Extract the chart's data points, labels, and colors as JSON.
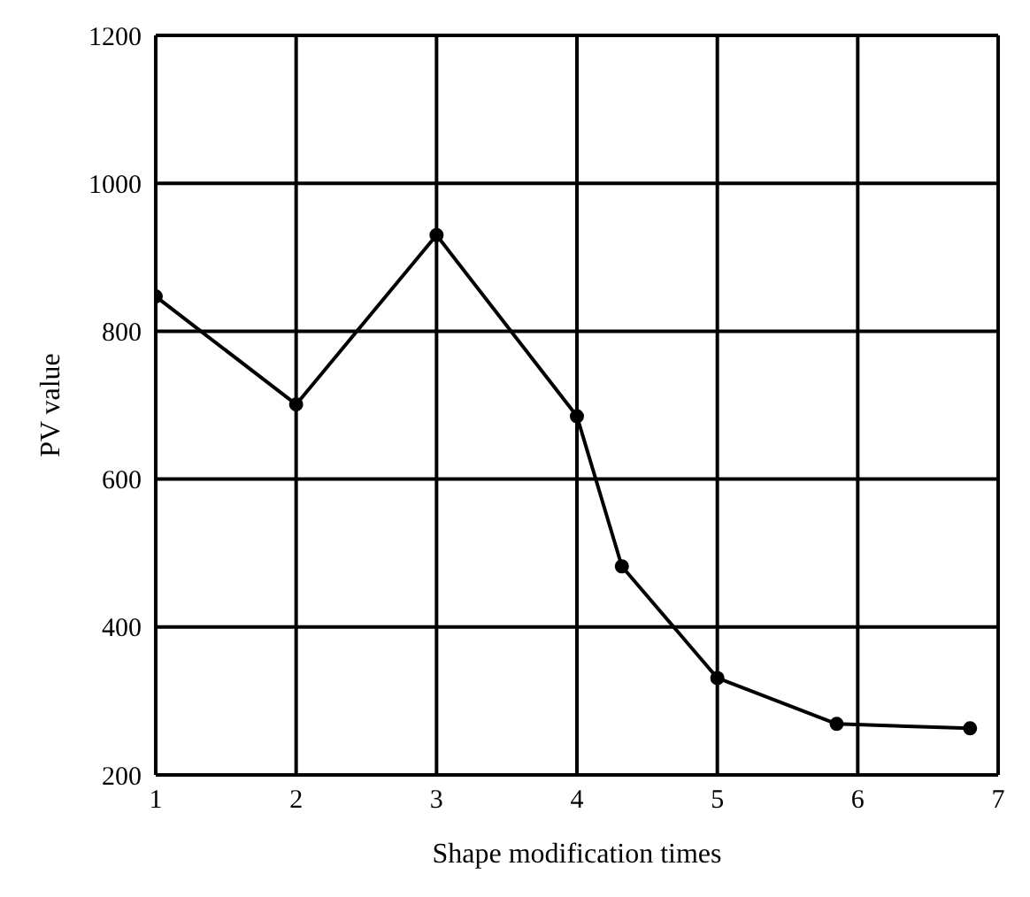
{
  "chart_data": {
    "type": "line",
    "xlabel": "Shape modification times",
    "ylabel": "PV value",
    "x": [
      1,
      2,
      3,
      4,
      4.32,
      5,
      5.85,
      6.8
    ],
    "series": [
      {
        "color": "#000000",
        "values": [
          847,
          701,
          930,
          685,
          482,
          331,
          269,
          263
        ]
      }
    ],
    "xlim": [
      1,
      7
    ],
    "xticks": [
      1,
      2,
      3,
      4,
      5,
      6,
      7
    ],
    "ylim": [
      200,
      1200
    ],
    "yticks": [
      200,
      400,
      600,
      800,
      1000,
      1200
    ],
    "grid": true,
    "marker": "circle",
    "line_style": "solid"
  }
}
